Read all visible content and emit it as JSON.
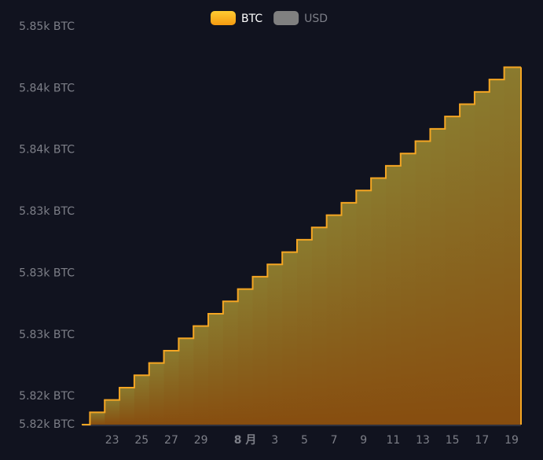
{
  "chart_data": {
    "type": "step-area",
    "categories": [
      null,
      null,
      "23",
      null,
      "25",
      null,
      "27",
      null,
      "29",
      null,
      null,
      "8 月",
      null,
      "3",
      null,
      "5",
      null,
      "7",
      null,
      "9",
      null,
      "11",
      null,
      "13",
      null,
      "15",
      null,
      "17",
      null,
      "19"
    ],
    "series": [
      {
        "name": "BTC",
        "color": "#f5a623",
        "values": [
          5822.4,
          5823.1,
          5823.8,
          5824.5,
          5825.2,
          5825.9,
          5826.6,
          5827.3,
          5828.0,
          5828.7,
          5829.4,
          5830.1,
          5830.8,
          5831.5,
          5832.2,
          5832.9,
          5833.6,
          5834.3,
          5835.0,
          5835.7,
          5836.4,
          5837.1,
          5837.8,
          5838.5,
          5839.2,
          5839.9,
          5840.6,
          5841.3,
          5842.0,
          5842.7
        ]
      },
      {
        "name": "USD",
        "color": "#808080",
        "hidden": true
      }
    ],
    "ylim": [
      5822.4,
      5845
    ],
    "yticks": [
      {
        "value": 5822.4,
        "label": "5.82k BTC"
      },
      {
        "value": 5824,
        "label": "5.82k BTC"
      },
      {
        "value": 5827.5,
        "label": "5.83k BTC"
      },
      {
        "value": 5831,
        "label": "5.83k BTC"
      },
      {
        "value": 5834.5,
        "label": "5.83k BTC"
      },
      {
        "value": 5838,
        "label": "5.84k BTC"
      },
      {
        "value": 5841.5,
        "label": "5.84k BTC"
      },
      {
        "value": 5845,
        "label": "5.85k BTC"
      }
    ],
    "grid": false
  }
}
